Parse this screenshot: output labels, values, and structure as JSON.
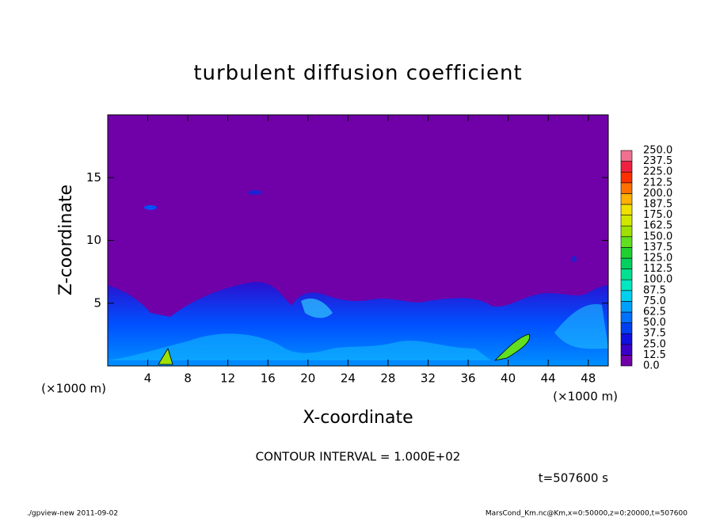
{
  "chart_data": {
    "type": "contour",
    "title": "turbulent diffusion coefficient",
    "xlabel": "X-coordinate",
    "ylabel": "Z-coordinate",
    "x_unit_left": "(×1000 m)",
    "x_unit_right": "(×1000 m)",
    "xlim": [
      0,
      50
    ],
    "ylim": [
      0,
      20
    ],
    "xticks": [
      4,
      8,
      12,
      16,
      20,
      24,
      28,
      32,
      36,
      40,
      44,
      48
    ],
    "yticks": [
      5,
      10,
      15
    ],
    "levels": [
      {
        "value": 0,
        "label": "0.0"
      },
      12.5,
      {
        "value": 25,
        "label": "25.0"
      },
      37.5,
      {
        "value": 50,
        "label": "50.0"
      },
      62.5,
      {
        "value": 75,
        "label": "75.0"
      },
      87.5,
      {
        "value": 100,
        "label": "100.0"
      },
      112.5,
      {
        "value": 125,
        "label": "125.0"
      },
      137.5,
      {
        "value": 150,
        "label": "150.0"
      },
      162.5,
      {
        "value": 175,
        "label": "175.0"
      },
      187.5,
      {
        "value": 200,
        "label": "200.0"
      },
      212.5,
      {
        "value": 225,
        "label": "225.0"
      },
      237.5,
      {
        "value": 250,
        "label": "250.0"
      }
    ],
    "colors": [
      "#7000a8",
      "#3a00c8",
      "#1010e0",
      "#0040f0",
      "#0070ff",
      "#00a0ff",
      "#00d0f0",
      "#00e8c0",
      "#00e090",
      "#00d060",
      "#20d030",
      "#60e020",
      "#a0e000",
      "#d0e800",
      "#f0e000",
      "#ffb000",
      "#ff7000",
      "#ff3000",
      "#f02040",
      "#f07090"
    ],
    "annotations": [
      "CONTOUR INTERVAL = 1.000E+02",
      "t=507600 s"
    ],
    "footer_left": "./gpview-new  2011-09-02",
    "footer_right": "MarsCond_Km.nc@Km,x=0:50000,z=0:20000,t=507600"
  }
}
